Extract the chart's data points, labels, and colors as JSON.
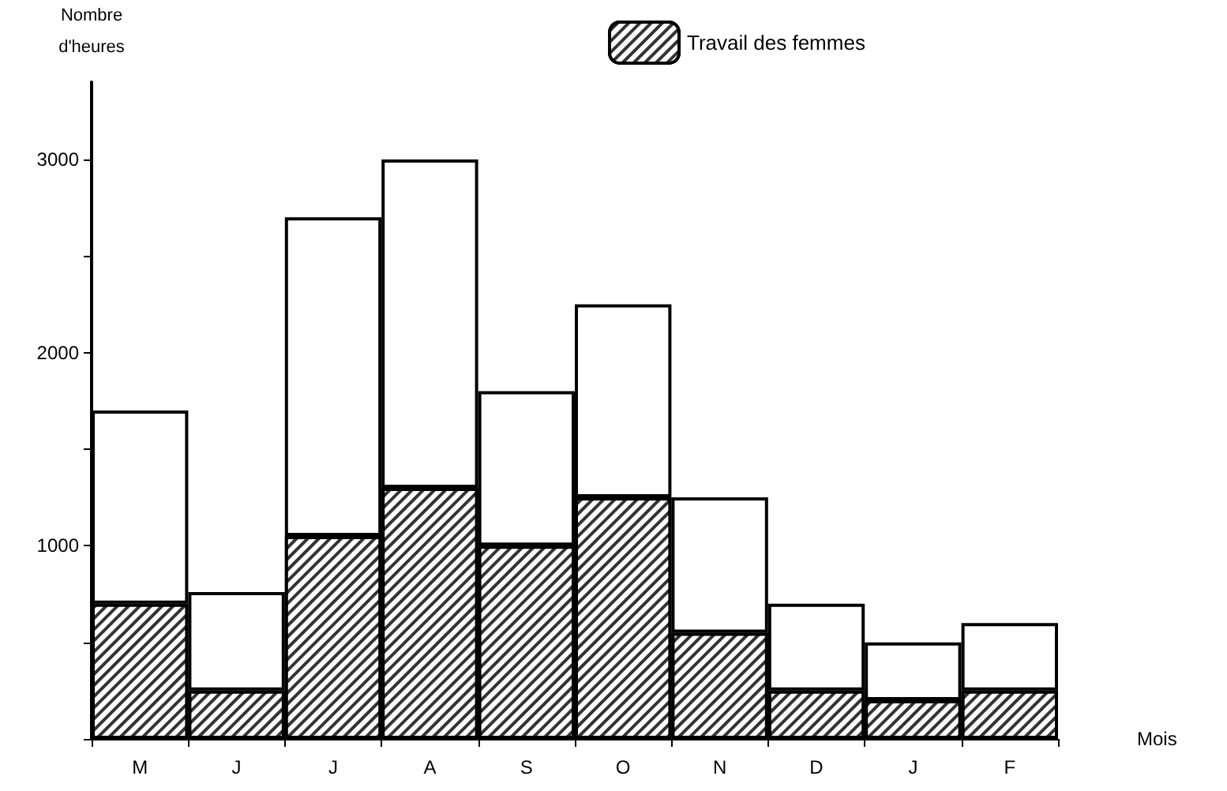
{
  "chart_data": {
    "type": "bar",
    "stacked": true,
    "ylabel": "Nombre\nd'heures",
    "xlabel": "Mois",
    "categories": [
      "M",
      "J",
      "J",
      "A",
      "S",
      "O",
      "N",
      "D",
      "J",
      "F"
    ],
    "series": [
      {
        "name": "Travail des femmes",
        "color": "#333333",
        "values": [
          700,
          250,
          1050,
          1300,
          1000,
          1250,
          550,
          250,
          200,
          250
        ]
      },
      {
        "color": "#ffffff",
        "values": [
          1000,
          510,
          1650,
          1700,
          800,
          1000,
          700,
          450,
          300,
          350
        ]
      }
    ],
    "ylim": [
      0,
      3400
    ],
    "yticks": [
      {
        "value": 0,
        "label": null
      },
      {
        "value": 500,
        "label": null
      },
      1000,
      {
        "value": 1500,
        "label": null
      },
      2000,
      {
        "value": 2500,
        "label": null
      },
      3000
    ],
    "grid": false,
    "legend": "top right"
  }
}
